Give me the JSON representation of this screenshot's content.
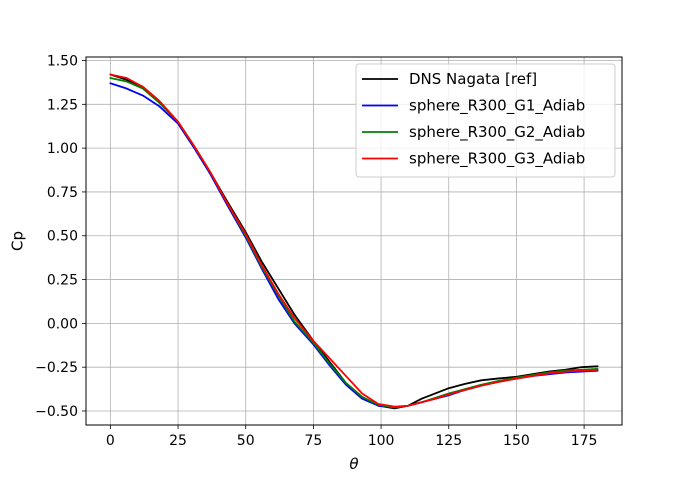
{
  "chart_data": {
    "type": "line",
    "title": "",
    "xlabel": "θ",
    "ylabel": "Cp",
    "xlim": [
      -9,
      189
    ],
    "ylim": [
      -0.58,
      1.52
    ],
    "xticks": [
      0,
      25,
      50,
      75,
      100,
      125,
      150,
      175
    ],
    "xtick_labels": [
      "0",
      "25",
      "50",
      "75",
      "100",
      "125",
      "150",
      "175"
    ],
    "yticks": [
      -0.5,
      -0.25,
      0.0,
      0.25,
      0.5,
      0.75,
      1.0,
      1.25,
      1.5
    ],
    "ytick_labels": [
      "−0.50",
      "−0.25",
      "0.00",
      "0.25",
      "0.50",
      "0.75",
      "1.00",
      "1.25",
      "1.50"
    ],
    "grid": true,
    "legend_position": "top-right",
    "series": [
      {
        "name": "DNS Nagata [ref]",
        "color": "#000000",
        "x": [
          0,
          6,
          12,
          18,
          25,
          31,
          37,
          43,
          50,
          56,
          62,
          68,
          75,
          81,
          87,
          93,
          99,
          105,
          110,
          115,
          120,
          125,
          131,
          137,
          143,
          150,
          156,
          162,
          168,
          174,
          180
        ],
        "y": [
          1.42,
          1.39,
          1.35,
          1.27,
          1.15,
          1.01,
          0.86,
          0.7,
          0.52,
          0.35,
          0.2,
          0.05,
          -0.1,
          -0.22,
          -0.34,
          -0.42,
          -0.47,
          -0.485,
          -0.47,
          -0.43,
          -0.4,
          -0.37,
          -0.345,
          -0.325,
          -0.315,
          -0.305,
          -0.29,
          -0.275,
          -0.265,
          -0.25,
          -0.245
        ]
      },
      {
        "name": "sphere_R300_G1_Adiab",
        "color": "#0000ff",
        "x": [
          0,
          6,
          12,
          18,
          25,
          31,
          37,
          43,
          50,
          56,
          62,
          68,
          75,
          81,
          87,
          93,
          99,
          105,
          110,
          115,
          120,
          125,
          131,
          137,
          143,
          150,
          156,
          162,
          168,
          174,
          180
        ],
        "y": [
          1.37,
          1.34,
          1.3,
          1.24,
          1.14,
          1.0,
          0.85,
          0.68,
          0.49,
          0.31,
          0.14,
          0.0,
          -0.12,
          -0.24,
          -0.35,
          -0.43,
          -0.47,
          -0.48,
          -0.47,
          -0.45,
          -0.43,
          -0.41,
          -0.38,
          -0.355,
          -0.335,
          -0.315,
          -0.3,
          -0.29,
          -0.28,
          -0.275,
          -0.27
        ]
      },
      {
        "name": "sphere_R300_G2_Adiab",
        "color": "#008000",
        "x": [
          0,
          6,
          12,
          18,
          25,
          31,
          37,
          43,
          50,
          56,
          62,
          68,
          75,
          81,
          87,
          93,
          99,
          105,
          110,
          115,
          120,
          125,
          131,
          137,
          143,
          150,
          156,
          162,
          168,
          174,
          180
        ],
        "y": [
          1.4,
          1.38,
          1.34,
          1.26,
          1.15,
          1.01,
          0.86,
          0.69,
          0.5,
          0.32,
          0.16,
          0.01,
          -0.11,
          -0.23,
          -0.34,
          -0.42,
          -0.465,
          -0.48,
          -0.47,
          -0.45,
          -0.425,
          -0.4,
          -0.375,
          -0.35,
          -0.33,
          -0.31,
          -0.295,
          -0.28,
          -0.27,
          -0.265,
          -0.26
        ]
      },
      {
        "name": "sphere_R300_G3_Adiab",
        "color": "#ff0000",
        "x": [
          0,
          6,
          12,
          18,
          25,
          31,
          37,
          43,
          50,
          56,
          62,
          68,
          75,
          81,
          87,
          93,
          99,
          105,
          110,
          115,
          120,
          125,
          131,
          137,
          143,
          150,
          156,
          162,
          168,
          174,
          180
        ],
        "y": [
          1.42,
          1.4,
          1.35,
          1.27,
          1.15,
          1.01,
          0.86,
          0.69,
          0.51,
          0.33,
          0.17,
          0.03,
          -0.1,
          -0.2,
          -0.3,
          -0.4,
          -0.46,
          -0.475,
          -0.47,
          -0.45,
          -0.43,
          -0.405,
          -0.38,
          -0.355,
          -0.335,
          -0.315,
          -0.3,
          -0.285,
          -0.275,
          -0.27,
          -0.265
        ]
      }
    ]
  }
}
